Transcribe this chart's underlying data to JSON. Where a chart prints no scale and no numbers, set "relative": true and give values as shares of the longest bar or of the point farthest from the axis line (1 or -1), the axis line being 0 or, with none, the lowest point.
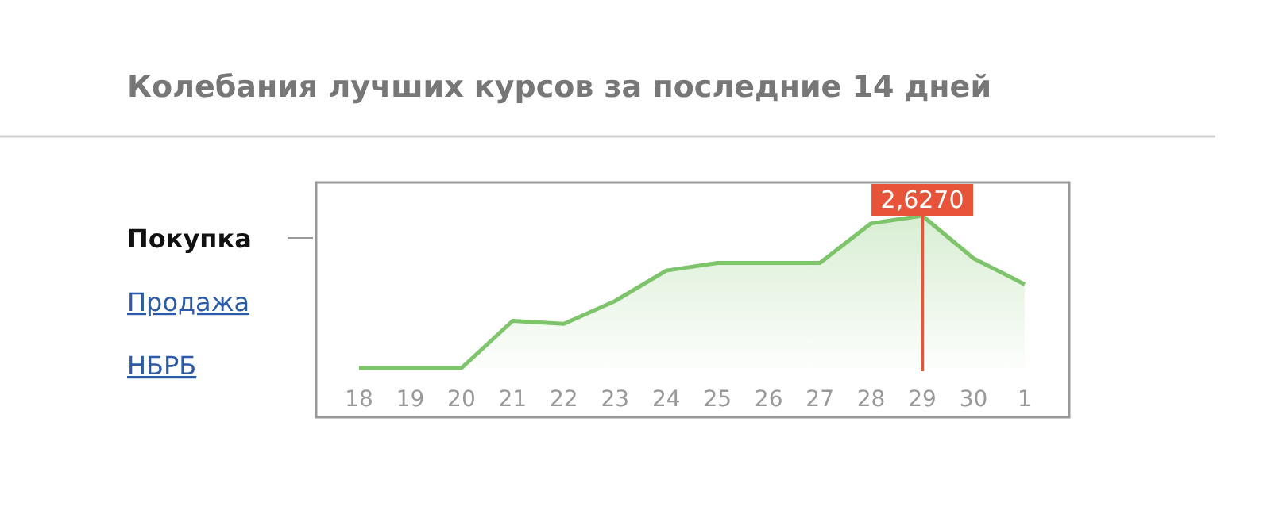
{
  "chart_data": {
    "type": "area",
    "title": "Колебания лучших курсов за последние 14 дней",
    "relative": true,
    "categories": [
      "18",
      "19",
      "20",
      "21",
      "22",
      "23",
      "24",
      "25",
      "26",
      "27",
      "28",
      "29",
      "30",
      "1"
    ],
    "series": [
      {
        "color": "#7dc46b",
        "values": [
          0,
          0,
          0,
          0.31,
          0.29,
          0.44,
          0.64,
          0.69,
          0.69,
          0.69,
          0.95,
          1,
          0.72,
          0.55
        ]
      }
    ],
    "ref_lines": [
      {
        "axis": "x",
        "value": "29",
        "label": "2,6270",
        "color": "#e8543a"
      }
    ],
    "annotations": [
      "Покупка",
      "Продажа",
      "НБРБ"
    ]
  }
}
